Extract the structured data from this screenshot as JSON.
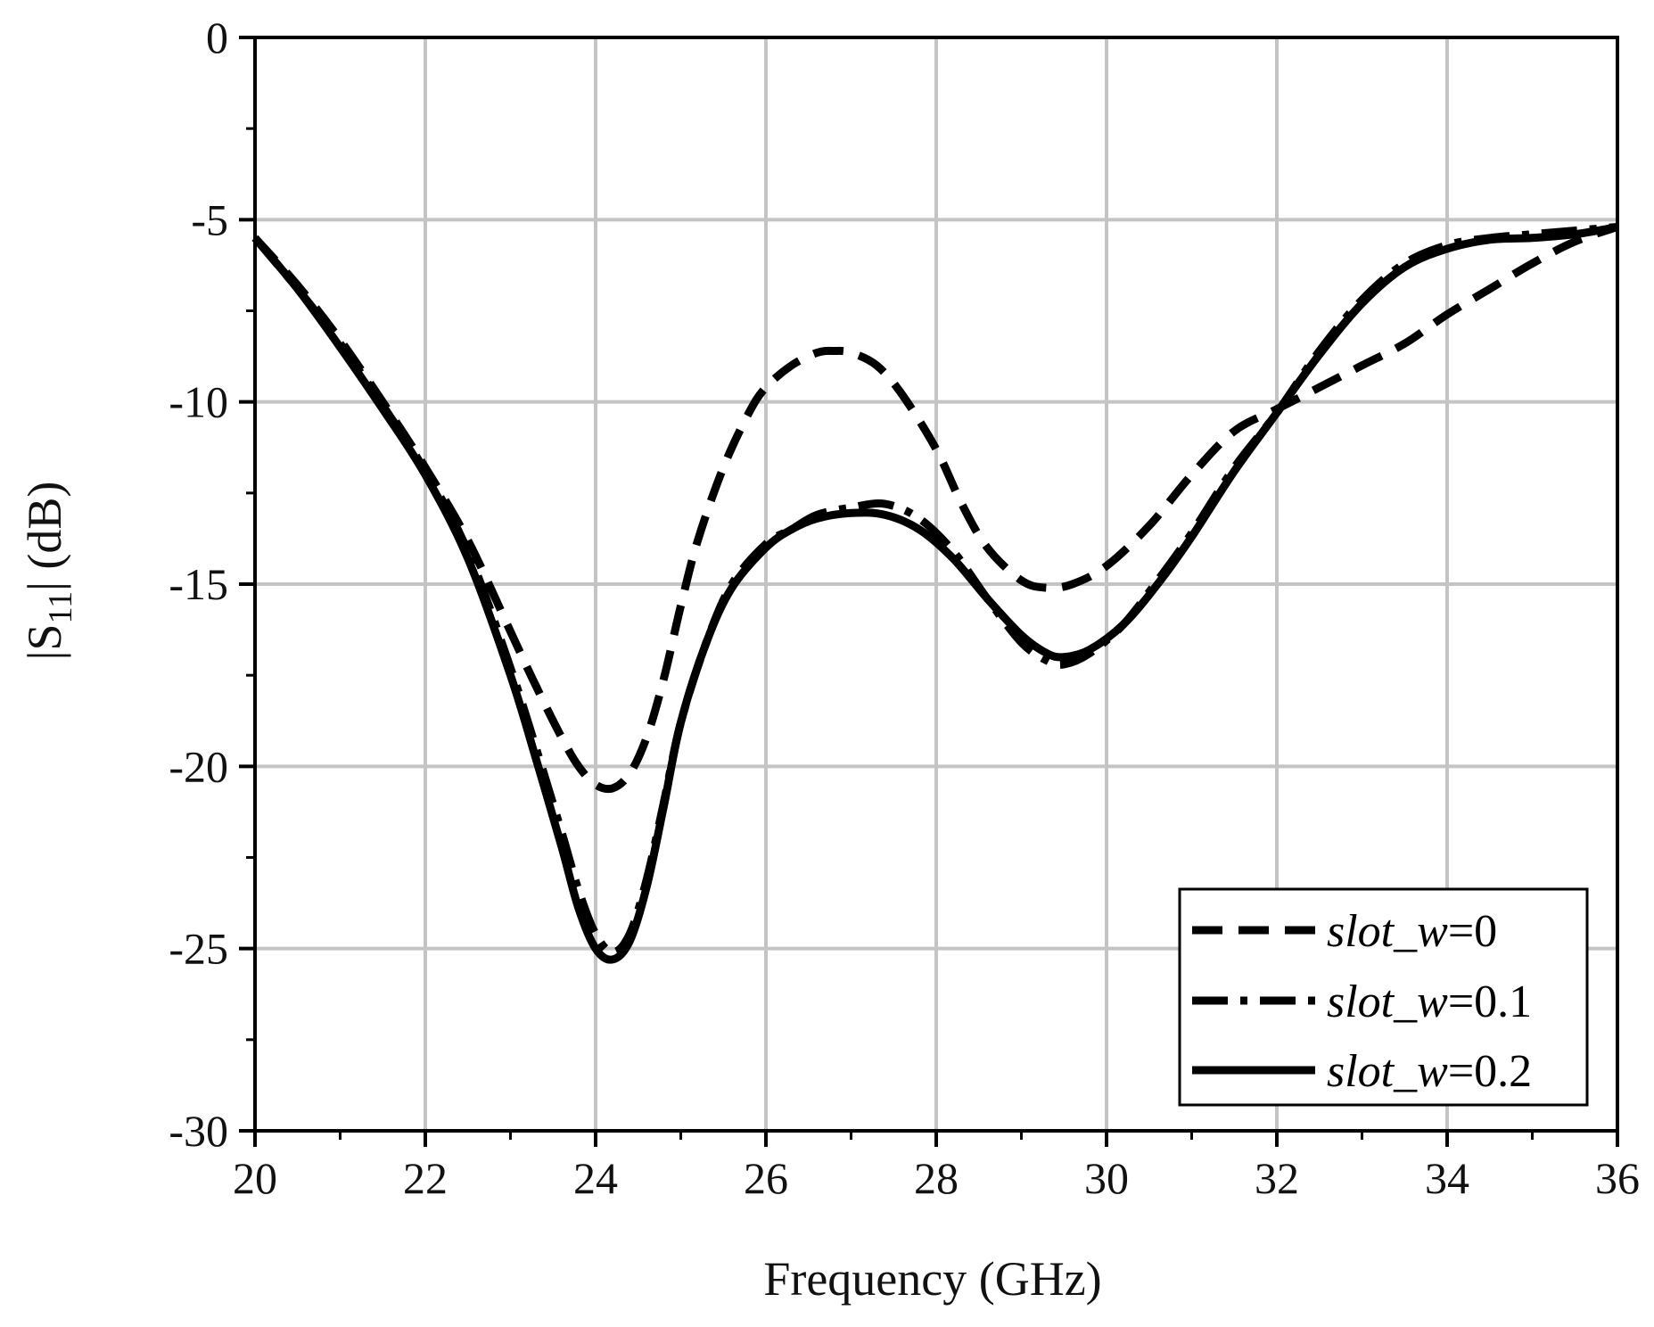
{
  "chart_data": {
    "type": "line",
    "xlabel": "Frequency (GHz)",
    "ylabel": {
      "main": "|S",
      "sub": "11",
      "rest": "| (dB)"
    },
    "xlim": [
      20,
      36
    ],
    "ylim": [
      -30,
      0
    ],
    "xticks": [
      20,
      22,
      24,
      26,
      28,
      30,
      32,
      34,
      36
    ],
    "xtick_labels": [
      "20",
      "22",
      "24",
      "26",
      "28",
      "30",
      "32",
      "34",
      "36"
    ],
    "yticks": [
      0,
      -5,
      -10,
      -15,
      -20,
      -25,
      -30
    ],
    "ytick_labels": [
      "0",
      "-5",
      "-10",
      "-15",
      "-20",
      "-25",
      "-30"
    ],
    "grid": true,
    "legend_position": "bottom-right",
    "series": [
      {
        "name": "slot_w=0",
        "name_italic": "slot_w",
        "name_rest": "=0",
        "style": "dashed",
        "x": [
          20,
          20.5,
          21,
          21.5,
          22,
          22.5,
          23,
          23.3,
          23.6,
          23.8,
          24,
          24.2,
          24.4,
          24.6,
          24.8,
          25,
          25.2,
          25.5,
          25.8,
          26,
          26.3,
          26.6,
          26.8,
          27,
          27.3,
          27.6,
          28,
          28.3,
          28.6,
          29,
          29.3,
          29.6,
          30,
          30.5,
          31,
          31.5,
          32,
          32.5,
          33,
          33.5,
          34,
          34.5,
          35,
          35.5,
          36
        ],
        "y": [
          -5.5,
          -6.8,
          -8.3,
          -10,
          -11.8,
          -13.8,
          -16.3,
          -17.8,
          -19.2,
          -20,
          -20.5,
          -20.6,
          -20.2,
          -19.2,
          -17.6,
          -15.6,
          -13.8,
          -11.8,
          -10.3,
          -9.6,
          -9,
          -8.65,
          -8.6,
          -8.65,
          -9,
          -9.8,
          -11.3,
          -12.8,
          -14,
          -14.9,
          -15.1,
          -15,
          -14.5,
          -13.4,
          -12,
          -10.8,
          -10.2,
          -9.6,
          -9,
          -8.4,
          -7.6,
          -6.9,
          -6.2,
          -5.6,
          -5.2
        ]
      },
      {
        "name": "slot_w=0.1",
        "name_italic": "slot_w",
        "name_rest": "=0.1",
        "style": "dashdot",
        "x": [
          20,
          20.5,
          21,
          21.5,
          22,
          22.5,
          23,
          23.3,
          23.6,
          23.8,
          24,
          24.2,
          24.4,
          24.6,
          24.8,
          25,
          25.3,
          25.6,
          26,
          26.3,
          26.6,
          27,
          27.4,
          27.8,
          28.2,
          28.6,
          29,
          29.3,
          29.5,
          29.8,
          30.2,
          30.6,
          31,
          31.5,
          32,
          32.5,
          33,
          33.5,
          34,
          34.5,
          35,
          35.5,
          36
        ],
        "y": [
          -5.5,
          -6.9,
          -8.4,
          -10.1,
          -11.9,
          -14.1,
          -17.3,
          -19.5,
          -21.8,
          -23.4,
          -24.6,
          -25.1,
          -24.6,
          -23.1,
          -21,
          -18.8,
          -16.6,
          -15,
          -13.9,
          -13.5,
          -13.1,
          -12.9,
          -12.8,
          -13.2,
          -14.1,
          -15.4,
          -16.6,
          -17.1,
          -17.2,
          -16.9,
          -16.1,
          -14.9,
          -13.6,
          -11.8,
          -10.3,
          -8.6,
          -7.2,
          -6.2,
          -5.7,
          -5.5,
          -5.4,
          -5.3,
          -5.2
        ]
      },
      {
        "name": "slot_w=0.2",
        "name_italic": "slot_w",
        "name_rest": "=0.2",
        "style": "solid",
        "x": [
          20,
          20.5,
          21,
          21.5,
          22,
          22.5,
          23,
          23.3,
          23.6,
          23.8,
          24,
          24.2,
          24.4,
          24.6,
          24.8,
          25,
          25.3,
          25.6,
          26,
          26.3,
          26.6,
          27,
          27.4,
          27.8,
          28.2,
          28.6,
          29,
          29.3,
          29.5,
          29.8,
          30.2,
          30.6,
          31,
          31.5,
          32,
          32.5,
          33,
          33.5,
          34,
          34.5,
          35,
          35.5,
          36
        ],
        "y": [
          -5.5,
          -6.9,
          -8.5,
          -10.2,
          -12,
          -14.3,
          -17.5,
          -19.8,
          -22.2,
          -23.9,
          -25,
          -25.3,
          -24.8,
          -23.3,
          -21.1,
          -18.8,
          -16.6,
          -15.1,
          -14,
          -13.5,
          -13.2,
          -13.05,
          -13.1,
          -13.5,
          -14.3,
          -15.4,
          -16.4,
          -16.9,
          -17,
          -16.8,
          -16.1,
          -15,
          -13.7,
          -11.9,
          -10.3,
          -8.7,
          -7.3,
          -6.3,
          -5.8,
          -5.55,
          -5.5,
          -5.4,
          -5.2
        ]
      }
    ]
  }
}
